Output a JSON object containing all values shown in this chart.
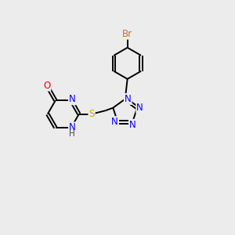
{
  "background_color": "#ececec",
  "bond_color": "#000000",
  "atom_colors": {
    "N": "#0000ff",
    "O": "#ff0000",
    "S": "#ccaa00",
    "Br": "#b87333",
    "C": "#000000",
    "H": "#555555"
  },
  "figsize": [
    3.0,
    3.0
  ],
  "dpi": 100,
  "lw": 1.4,
  "fs": 8.5,
  "fs_small": 7.5,
  "double_sep": 0.06
}
